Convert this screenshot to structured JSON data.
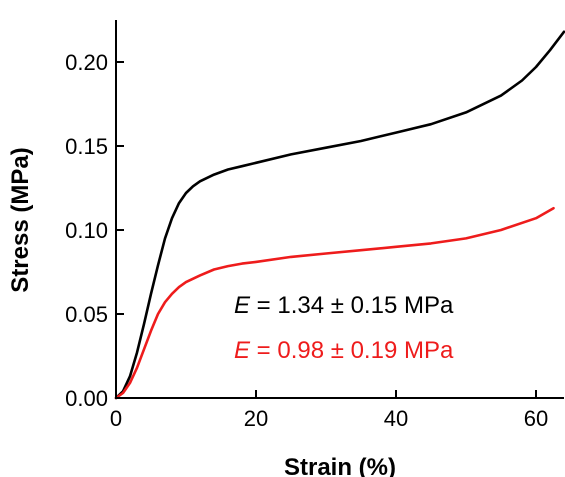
{
  "chart_data": {
    "type": "line",
    "xlabel": "Strain (%)",
    "ylabel": "Stress (MPa)",
    "xlim": [
      0,
      64
    ],
    "ylim": [
      0,
      0.225
    ],
    "xticks": [
      "0",
      "20",
      "40",
      "60"
    ],
    "yticks": [
      "0.00",
      "0.05",
      "0.10",
      "0.15",
      "0.20"
    ],
    "xtick_values": [
      0,
      20,
      40,
      60
    ],
    "ytick_values": [
      0,
      0.05,
      0.1,
      0.15,
      0.2
    ],
    "grid": false,
    "series": [
      {
        "color": "#000000",
        "x": [
          0,
          1,
          2,
          3,
          4,
          5,
          6,
          7,
          8,
          9,
          10,
          11,
          12,
          14,
          16,
          18,
          20,
          25,
          30,
          35,
          40,
          45,
          50,
          55,
          58,
          60,
          62,
          64
        ],
        "y": [
          0,
          0.004,
          0.013,
          0.027,
          0.044,
          0.062,
          0.079,
          0.095,
          0.107,
          0.116,
          0.122,
          0.126,
          0.129,
          0.133,
          0.136,
          0.138,
          0.14,
          0.145,
          0.149,
          0.153,
          0.158,
          0.163,
          0.17,
          0.18,
          0.189,
          0.197,
          0.207,
          0.218
        ]
      },
      {
        "color": "#ee1c1c",
        "x": [
          0,
          1,
          2,
          3,
          4,
          5,
          6,
          7,
          8,
          9,
          10,
          12,
          14,
          16,
          18,
          20,
          25,
          30,
          35,
          40,
          45,
          50,
          55,
          60,
          62.5
        ],
        "y": [
          0,
          0.003,
          0.009,
          0.018,
          0.029,
          0.04,
          0.05,
          0.057,
          0.062,
          0.066,
          0.069,
          0.073,
          0.0765,
          0.0785,
          0.08,
          0.081,
          0.084,
          0.086,
          0.088,
          0.09,
          0.092,
          0.095,
          0.1,
          0.107,
          0.113
        ]
      }
    ],
    "annotations": [
      {
        "italic": "E",
        "text": " = 1.34 ± 0.15 MPa",
        "color": "#000000"
      },
      {
        "italic": "E",
        "text": " = 0.98 ± 0.19 MPa",
        "color": "#ee1c1c"
      }
    ]
  }
}
